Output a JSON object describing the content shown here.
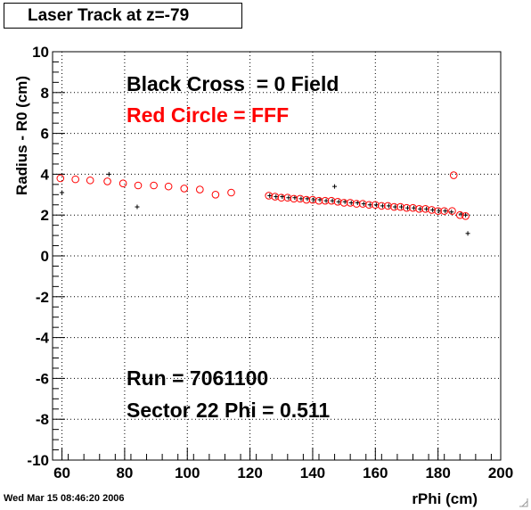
{
  "title": "Laser Track at z=-79",
  "timestamp": "Wed Mar 15 08:46:20 2006",
  "chart_data": {
    "type": "scatter",
    "xlabel": "rPhi (cm)",
    "ylabel": "Radius - R0 (cm)",
    "xlim": [
      57,
      200
    ],
    "ylim": [
      -10,
      10
    ],
    "x_ticks": [
      60,
      80,
      100,
      120,
      140,
      160,
      180,
      200
    ],
    "y_ticks": [
      -10,
      -8,
      -6,
      -4,
      -2,
      0,
      2,
      4,
      6,
      8,
      10
    ],
    "grid": true,
    "annotations": [
      {
        "id": "legend-black",
        "text": "Black Cross  = 0 Field",
        "color": "#000000"
      },
      {
        "id": "legend-red",
        "text": "Red Circle = FFF",
        "color": "#ff0000"
      },
      {
        "id": "run",
        "text": "Run = 7061100",
        "color": "#000000"
      },
      {
        "id": "sector",
        "text": "Sector 22 Phi = 0.511",
        "color": "#000000"
      }
    ],
    "series": [
      {
        "marker": "cross",
        "color": "#000000",
        "points": [
          [
            60,
            3.1
          ],
          [
            75,
            4.0
          ],
          [
            84,
            2.4
          ],
          [
            147,
            3.4
          ],
          [
            189.5,
            1.1
          ],
          [
            126.3,
            2.95
          ],
          [
            128.3,
            2.9
          ],
          [
            130.3,
            2.9
          ],
          [
            132.3,
            2.85
          ],
          [
            134.3,
            2.85
          ],
          [
            136.3,
            2.8
          ],
          [
            138.3,
            2.8
          ],
          [
            140.3,
            2.75
          ],
          [
            142.3,
            2.75
          ],
          [
            144.3,
            2.7
          ],
          [
            146.3,
            2.7
          ],
          [
            148.3,
            2.65
          ],
          [
            150.3,
            2.65
          ],
          [
            152.3,
            2.6
          ],
          [
            154.3,
            2.6
          ],
          [
            156.3,
            2.55
          ],
          [
            158.3,
            2.5
          ],
          [
            160.3,
            2.5
          ],
          [
            162.3,
            2.45
          ],
          [
            164.3,
            2.45
          ],
          [
            166.3,
            2.4
          ],
          [
            168.3,
            2.4
          ],
          [
            170.3,
            2.35
          ],
          [
            172.3,
            2.35
          ],
          [
            174.3,
            2.3
          ],
          [
            176.3,
            2.3
          ],
          [
            178.3,
            2.25
          ],
          [
            180.3,
            2.2
          ],
          [
            182.3,
            2.2
          ],
          [
            184.3,
            2.15
          ],
          [
            187.3,
            2.05
          ],
          [
            188.8,
            2.0
          ]
        ]
      },
      {
        "marker": "circle",
        "color": "#ff0000",
        "points": [
          [
            59.5,
            3.8
          ],
          [
            64.3,
            3.75
          ],
          [
            69.0,
            3.7
          ],
          [
            74.5,
            3.65
          ],
          [
            79.5,
            3.55
          ],
          [
            84.3,
            3.45
          ],
          [
            89.3,
            3.45
          ],
          [
            94.0,
            3.4
          ],
          [
            99.0,
            3.3
          ],
          [
            104.0,
            3.25
          ],
          [
            109.0,
            3.0
          ],
          [
            114.0,
            3.1
          ],
          [
            126.0,
            2.95
          ],
          [
            128.0,
            2.9
          ],
          [
            130.0,
            2.85
          ],
          [
            132.0,
            2.85
          ],
          [
            134.0,
            2.8
          ],
          [
            136.0,
            2.8
          ],
          [
            138.0,
            2.75
          ],
          [
            140.0,
            2.75
          ],
          [
            142.0,
            2.7
          ],
          [
            144.0,
            2.7
          ],
          [
            146.0,
            2.7
          ],
          [
            148.0,
            2.65
          ],
          [
            150.0,
            2.6
          ],
          [
            152.0,
            2.6
          ],
          [
            154.0,
            2.55
          ],
          [
            156.0,
            2.55
          ],
          [
            158.0,
            2.5
          ],
          [
            160.0,
            2.5
          ],
          [
            162.0,
            2.45
          ],
          [
            164.0,
            2.45
          ],
          [
            166.0,
            2.4
          ],
          [
            168.0,
            2.4
          ],
          [
            170.0,
            2.35
          ],
          [
            172.0,
            2.35
          ],
          [
            174.0,
            2.3
          ],
          [
            176.0,
            2.3
          ],
          [
            178.0,
            2.25
          ],
          [
            180.0,
            2.2
          ],
          [
            182.0,
            2.2
          ],
          [
            184.5,
            2.2
          ],
          [
            185.0,
            3.95
          ],
          [
            187.0,
            2.0
          ],
          [
            188.8,
            1.95
          ]
        ]
      }
    ]
  }
}
